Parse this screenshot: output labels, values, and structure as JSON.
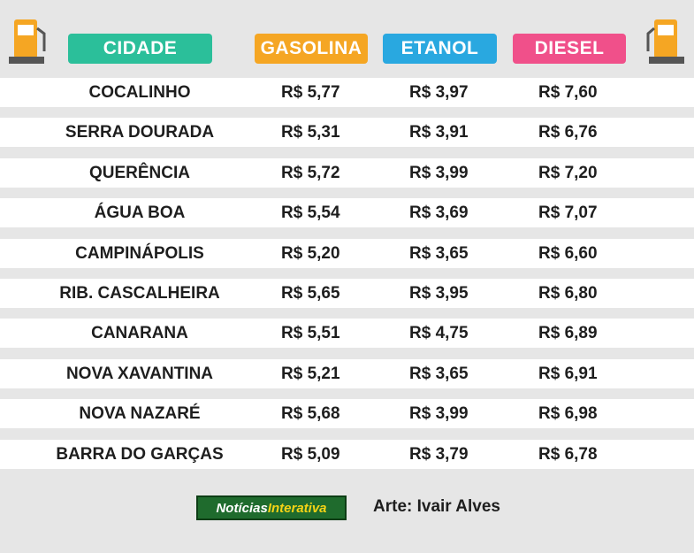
{
  "table": {
    "header": [
      "CIDADE",
      "GASOLINA",
      "ETANOL",
      "DIESEL"
    ],
    "rows": [
      [
        "COCALINHO",
        "R$ 5,77",
        "R$ 3,97",
        "R$ 7,60"
      ],
      [
        "SERRA DOURADA",
        "R$ 5,31",
        "R$ 3,91",
        "R$ 6,76"
      ],
      [
        "QUERÊNCIA",
        "R$ 5,72",
        "R$ 3,99",
        "R$ 7,20"
      ],
      [
        "ÁGUA BOA",
        "R$ 5,54",
        "R$ 3,69",
        "R$ 7,07"
      ],
      [
        "CAMPINÁPOLIS",
        "R$ 5,20",
        "R$ 3,65",
        "R$ 6,60"
      ],
      [
        "RIB. CASCALHEIRA",
        "R$ 5,65",
        "R$ 3,95",
        "R$ 6,80"
      ],
      [
        "CANARANA",
        "R$ 5,51",
        "R$ 4,75",
        "R$ 6,89"
      ],
      [
        "NOVA XAVANTINA",
        "R$ 5,21",
        "R$ 3,65",
        "R$ 6,91"
      ],
      [
        "NOVA NAZARÉ",
        "R$ 5,68",
        "R$ 3,99",
        "R$ 6,98"
      ],
      [
        "BARRA DO GARÇAS",
        "R$ 5,09",
        "R$ 3,79",
        "R$ 6,78"
      ]
    ]
  },
  "footer": {
    "logo": [
      "Notícias",
      "Interativa"
    ],
    "credit": "Arte: Ivair Alves"
  }
}
